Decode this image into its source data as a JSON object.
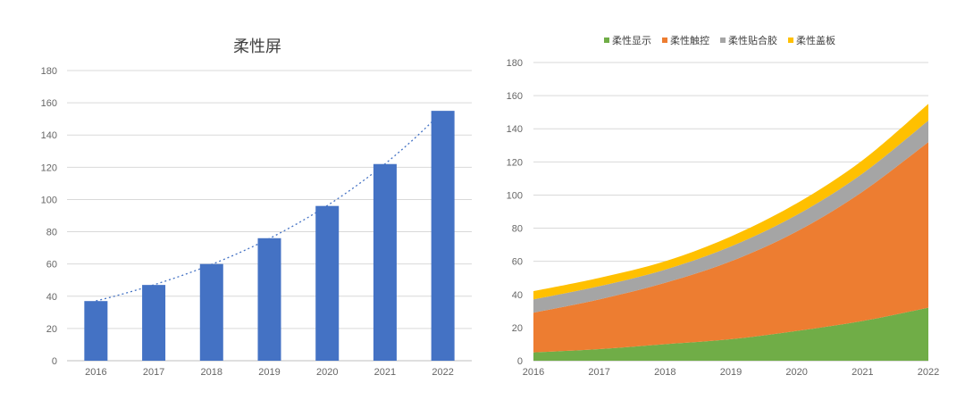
{
  "chart_data": [
    {
      "type": "bar",
      "title": "柔性屏",
      "categories": [
        "2016",
        "2017",
        "2018",
        "2019",
        "2020",
        "2021",
        "2022"
      ],
      "values": [
        37,
        47,
        60,
        76,
        96,
        122,
        155
      ],
      "ylim": [
        0,
        180
      ],
      "yticks": [
        "0",
        "20",
        "40",
        "60",
        "80",
        "100",
        "120",
        "140",
        "160",
        "180"
      ],
      "grid": true,
      "trendline": true,
      "color": "#4472C4"
    },
    {
      "type": "area",
      "stacked": true,
      "categories": [
        "2016",
        "2017",
        "2018",
        "2019",
        "2020",
        "2021",
        "2022"
      ],
      "series": [
        {
          "name": "柔性显示",
          "values": [
            5,
            7,
            10,
            13,
            18,
            24,
            32
          ],
          "color": "#70AD47"
        },
        {
          "name": "柔性触控",
          "values": [
            24,
            30,
            37,
            47,
            60,
            78,
            100
          ],
          "color": "#ED7D31"
        },
        {
          "name": "柔性贴合胶",
          "values": [
            8,
            8,
            8,
            9,
            10,
            11,
            13
          ],
          "color": "#A5A5A5"
        },
        {
          "name": "柔性盖板",
          "values": [
            5,
            5,
            5,
            6,
            7,
            8,
            10
          ],
          "color": "#FFC000"
        }
      ],
      "ylim": [
        0,
        180
      ],
      "yticks": [
        "0",
        "20",
        "40",
        "60",
        "80",
        "100",
        "120",
        "140",
        "160",
        "180"
      ],
      "grid": true,
      "legend": "top"
    }
  ]
}
